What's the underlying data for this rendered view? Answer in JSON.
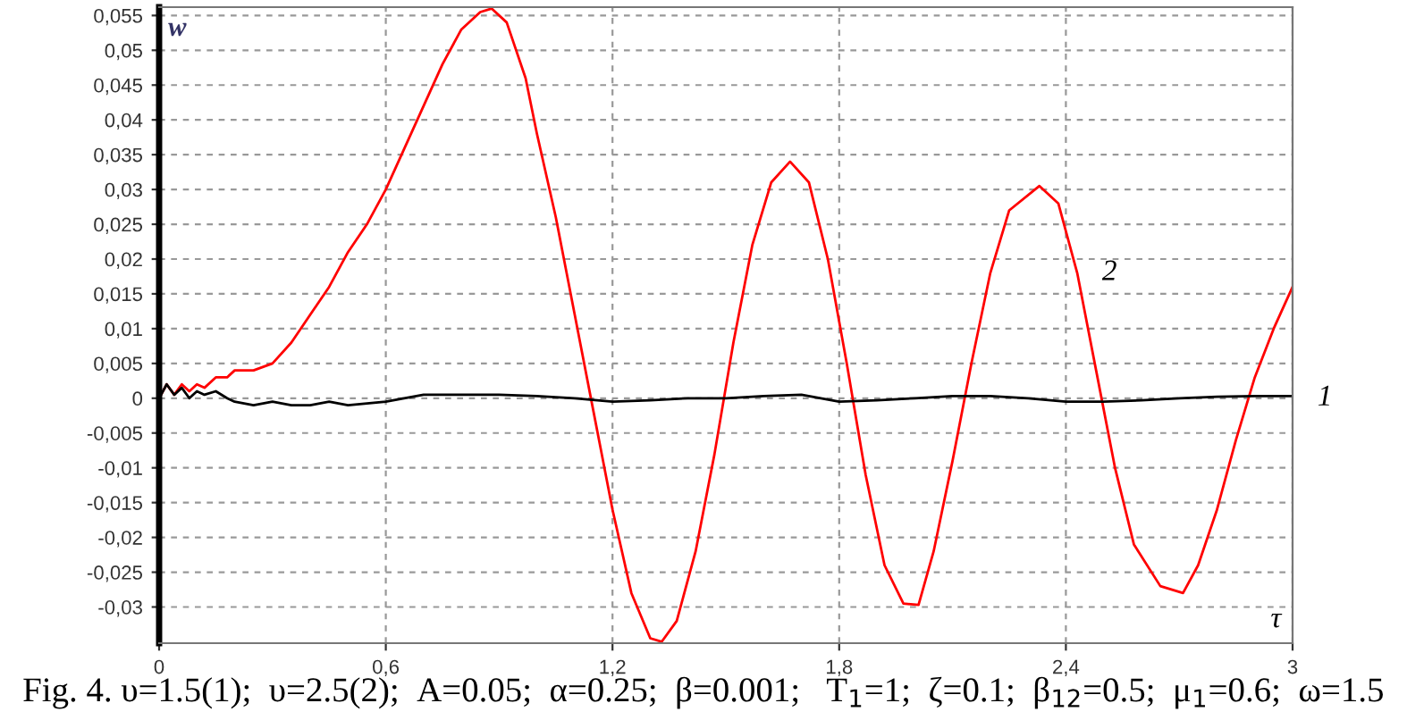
{
  "chart_data": {
    "type": "line",
    "xlabel": "τ",
    "ylabel": "w",
    "series": [
      {
        "color": "#ff0000",
        "x": [
          0,
          0.02,
          0.04,
          0.06,
          0.08,
          0.1,
          0.12,
          0.15,
          0.18,
          0.2,
          0.25,
          0.3,
          0.35,
          0.4,
          0.45,
          0.5,
          0.55,
          0.6,
          0.65,
          0.7,
          0.75,
          0.8,
          0.85,
          0.88,
          0.92,
          0.97,
          1.0,
          1.05,
          1.1,
          1.15,
          1.2,
          1.25,
          1.3,
          1.33,
          1.37,
          1.42,
          1.47,
          1.52,
          1.57,
          1.62,
          1.67,
          1.72,
          1.77,
          1.82,
          1.87,
          1.92,
          1.97,
          2.01,
          2.05,
          2.1,
          2.15,
          2.2,
          2.25,
          2.33,
          2.38,
          2.43,
          2.48,
          2.53,
          2.58,
          2.65,
          2.71,
          2.75,
          2.8,
          2.85,
          2.9,
          2.95,
          3.0
        ],
        "values": [
          0,
          0.002,
          0.0005,
          0.002,
          0.001,
          0.002,
          0.0015,
          0.003,
          0.003,
          0.004,
          0.004,
          0.005,
          0.008,
          0.012,
          0.016,
          0.021,
          0.025,
          0.03,
          0.036,
          0.042,
          0.048,
          0.053,
          0.0555,
          0.056,
          0.054,
          0.046,
          0.038,
          0.026,
          0.012,
          -0.002,
          -0.016,
          -0.028,
          -0.0345,
          -0.035,
          -0.032,
          -0.022,
          -0.008,
          0.008,
          0.022,
          0.031,
          0.034,
          0.031,
          0.02,
          0.005,
          -0.011,
          -0.024,
          -0.0295,
          -0.0297,
          -0.022,
          -0.009,
          0.005,
          0.018,
          0.027,
          0.0305,
          0.028,
          0.018,
          0.004,
          -0.01,
          -0.021,
          -0.027,
          -0.028,
          -0.024,
          -0.016,
          -0.006,
          0.003,
          0.01,
          0.016
        ]
      },
      {
        "color": "#000000",
        "x": [
          0,
          0.02,
          0.04,
          0.06,
          0.08,
          0.1,
          0.12,
          0.15,
          0.18,
          0.2,
          0.25,
          0.3,
          0.35,
          0.4,
          0.45,
          0.5,
          0.6,
          0.7,
          0.8,
          0.9,
          1.0,
          1.1,
          1.2,
          1.3,
          1.4,
          1.5,
          1.6,
          1.7,
          1.8,
          1.9,
          2.0,
          2.1,
          2.2,
          2.3,
          2.4,
          2.5,
          2.6,
          2.7,
          2.8,
          2.9,
          3.0
        ],
        "values": [
          0,
          0.002,
          0.0005,
          0.0015,
          0,
          0.001,
          0.0005,
          0.001,
          0,
          -0.0005,
          -0.001,
          -0.0005,
          -0.001,
          -0.001,
          -0.0005,
          -0.001,
          -0.0005,
          0.0005,
          0.0005,
          0.0005,
          0.0003,
          0,
          -0.0005,
          -0.0003,
          0,
          0,
          0.0003,
          0.0005,
          -0.0005,
          -0.0003,
          0,
          0.0003,
          0.0003,
          0,
          -0.0005,
          -0.0005,
          -0.0003,
          0,
          0.0002,
          0.0003,
          0.0003
        ]
      }
    ],
    "xlim": [
      0,
      3
    ],
    "ylim": [
      -0.0352,
      0.0562
    ],
    "xticks": [
      {
        "value": 0,
        "label": "0"
      },
      {
        "value": 0.6,
        "label": "0,6"
      },
      {
        "value": 1.2,
        "label": "1,2"
      },
      {
        "value": 1.8,
        "label": "1,8"
      },
      {
        "value": 2.4,
        "label": "2,4"
      },
      {
        "value": 3,
        "label": "3"
      }
    ],
    "yticks": [
      {
        "value": -0.03,
        "label": "-0,03"
      },
      {
        "value": -0.025,
        "label": "-0,025"
      },
      {
        "value": -0.02,
        "label": "-0,02"
      },
      {
        "value": -0.015,
        "label": "-0,015"
      },
      {
        "value": -0.01,
        "label": "-0,01"
      },
      {
        "value": -0.005,
        "label": "-0,005"
      },
      {
        "value": 0,
        "label": "0"
      },
      {
        "value": 0.005,
        "label": "0,005"
      },
      {
        "value": 0.01,
        "label": "0,01"
      },
      {
        "value": 0.015,
        "label": "0,015"
      },
      {
        "value": 0.02,
        "label": "0,02"
      },
      {
        "value": 0.025,
        "label": "0,025"
      },
      {
        "value": 0.03,
        "label": "0,03"
      },
      {
        "value": 0.035,
        "label": "0,035"
      },
      {
        "value": 0.04,
        "label": "0,04"
      },
      {
        "value": 0.045,
        "label": "0,045"
      },
      {
        "value": 0.05,
        "label": "0,05"
      },
      {
        "value": 0.055,
        "label": "0,055"
      }
    ],
    "grid": true,
    "annotations": [
      {
        "text": "1",
        "x": 3,
        "y": 0
      },
      {
        "text": "2",
        "x": 2.43,
        "y": 0.018
      },
      "Fig. 4. υ=1.5(1);  υ=2.5(2);  A=0.05;  α=0.25;  β=0.001;   T$_{1}$=1;  ζ=0.1;  β$_{12}$=0.5;  μ$_{1}$=0.6;  ω=1.5"
    ]
  }
}
